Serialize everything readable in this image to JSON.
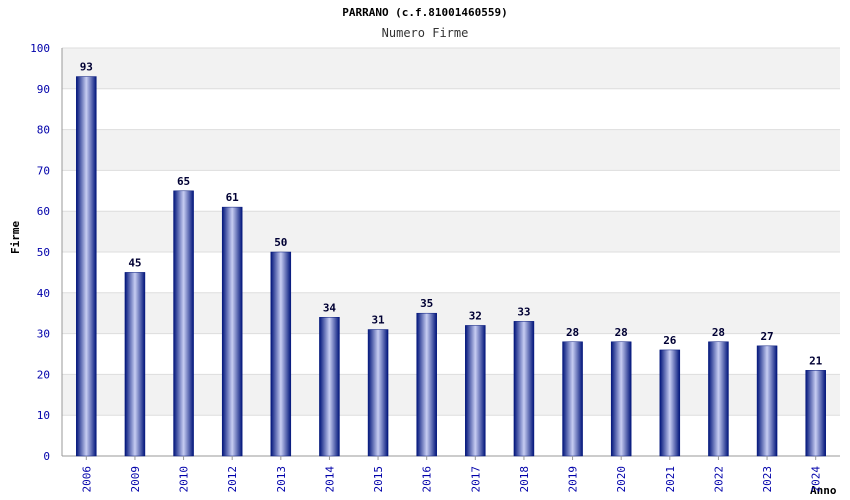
{
  "chart_data": {
    "type": "bar",
    "title": "PARRANO (c.f.81001460559)",
    "subtitle": "Numero Firme",
    "xlabel": "Anno",
    "ylabel": "Firme",
    "ylim": [
      0,
      100
    ],
    "y_ticks": [
      0,
      10,
      20,
      30,
      40,
      50,
      60,
      70,
      80,
      90,
      100
    ],
    "categories": [
      "2006",
      "2009",
      "2010",
      "2012",
      "2013",
      "2014",
      "2015",
      "2016",
      "2017",
      "2018",
      "2019",
      "2020",
      "2021",
      "2022",
      "2023",
      "2024"
    ],
    "values": [
      93,
      45,
      65,
      61,
      50,
      34,
      31,
      35,
      32,
      33,
      28,
      28,
      26,
      28,
      27,
      21
    ],
    "grid": true,
    "colors": {
      "bar_dark": "#00147a",
      "bar_light": "#c7cdf2",
      "band": "#f2f2f2",
      "grid": "#dddddd",
      "tick_text": "#0000aa"
    }
  }
}
